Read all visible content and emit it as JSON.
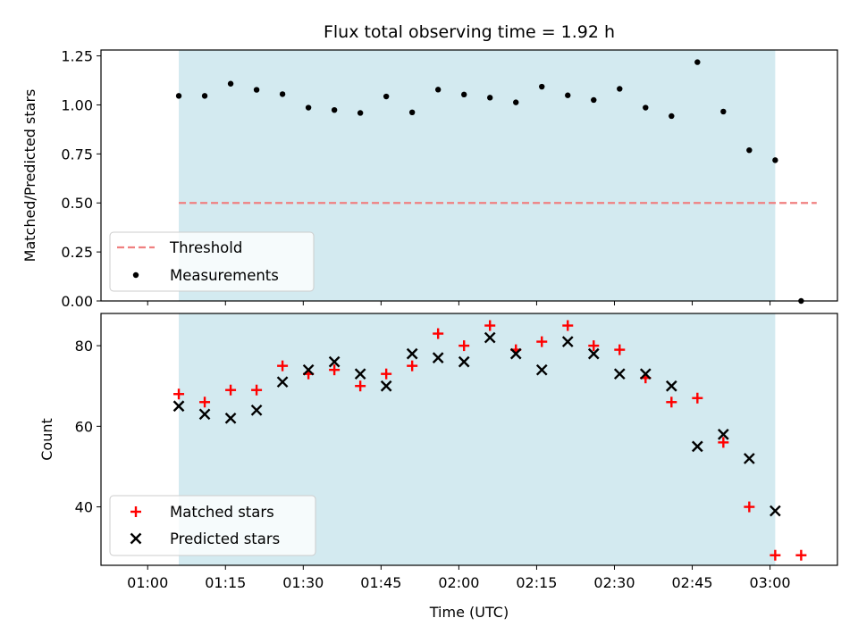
{
  "chart_data": [
    {
      "type": "scatter",
      "title": "Flux total observing time = 1.92 h",
      "xlabel": "",
      "ylabel": "Matched/Predicted stars",
      "xlim": [
        "00:51",
        "03:13"
      ],
      "ylim": [
        0,
        1.28
      ],
      "yticks": [
        "0.00",
        "0.25",
        "0.50",
        "0.75",
        "1.00",
        "1.25"
      ],
      "shaded_span": [
        "01:06",
        "03:01"
      ],
      "shade_color": "#d3eaf0",
      "legend": {
        "placement": "lower-left",
        "entries": [
          {
            "label": "Threshold",
            "marker": "dashed-line",
            "color": "#f08080"
          },
          {
            "label": "Measurements",
            "marker": "dot",
            "color": "#000000"
          }
        ]
      },
      "series": [
        {
          "name": "Threshold",
          "style": "dashed",
          "color": "#f08080",
          "x": [
            "01:06",
            "03:09"
          ],
          "values": [
            0.5,
            0.5
          ]
        },
        {
          "name": "Measurements",
          "style": "dot",
          "color": "#000000",
          "x": [
            "01:06",
            "01:11",
            "01:16",
            "01:21",
            "01:26",
            "01:31",
            "01:36",
            "01:41",
            "01:46",
            "01:51",
            "01:56",
            "02:01",
            "02:06",
            "02:11",
            "02:16",
            "02:21",
            "02:26",
            "02:31",
            "02:36",
            "02:41",
            "02:46",
            "02:51",
            "02:56",
            "03:01",
            "03:06"
          ],
          "values": [
            1.046,
            1.046,
            1.108,
            1.077,
            1.055,
            0.986,
            0.974,
            0.959,
            1.043,
            0.962,
            1.078,
            1.053,
            1.037,
            1.013,
            1.093,
            1.049,
            1.025,
            1.082,
            0.986,
            0.943,
            1.218,
            0.966,
            0.769,
            0.718,
            0.0
          ]
        }
      ]
    },
    {
      "type": "scatter",
      "title": "",
      "xlabel": "Time (UTC)",
      "ylabel": "Count",
      "xlim": [
        "00:51",
        "03:13"
      ],
      "ylim": [
        25.5,
        88
      ],
      "yticks": [
        "40",
        "60",
        "80"
      ],
      "xticks": [
        "01:00",
        "01:15",
        "01:30",
        "01:45",
        "02:00",
        "02:15",
        "02:30",
        "02:45",
        "03:00"
      ],
      "shaded_span": [
        "01:06",
        "03:01"
      ],
      "shade_color": "#d3eaf0",
      "legend": {
        "placement": "lower-left",
        "entries": [
          {
            "label": "Matched stars",
            "marker": "plus",
            "color": "#ff0000"
          },
          {
            "label": "Predicted stars",
            "marker": "x",
            "color": "#000000"
          }
        ]
      },
      "series": [
        {
          "name": "Matched stars",
          "marker": "plus",
          "color": "#ff0000",
          "x": [
            "01:06",
            "01:11",
            "01:16",
            "01:21",
            "01:26",
            "01:31",
            "01:36",
            "01:41",
            "01:46",
            "01:51",
            "01:56",
            "02:01",
            "02:06",
            "02:11",
            "02:16",
            "02:21",
            "02:26",
            "02:31",
            "02:36",
            "02:41",
            "02:46",
            "02:51",
            "02:56",
            "03:01",
            "03:06"
          ],
          "values": [
            68,
            66,
            69,
            69,
            75,
            73,
            74,
            70,
            73,
            75,
            83,
            80,
            85,
            79,
            81,
            85,
            80,
            79,
            72,
            66,
            67,
            56,
            40,
            28,
            28
          ]
        },
        {
          "name": "Predicted stars",
          "marker": "x",
          "color": "#000000",
          "x": [
            "01:06",
            "01:11",
            "01:16",
            "01:21",
            "01:26",
            "01:31",
            "01:36",
            "01:41",
            "01:46",
            "01:51",
            "01:56",
            "02:01",
            "02:06",
            "02:11",
            "02:16",
            "02:21",
            "02:26",
            "02:31",
            "02:36",
            "02:41",
            "02:46",
            "02:51",
            "02:56",
            "03:01"
          ],
          "values": [
            65,
            63,
            62,
            64,
            71,
            74,
            76,
            73,
            70,
            78,
            77,
            76,
            82,
            78,
            74,
            81,
            78,
            73,
            73,
            70,
            55,
            58,
            52,
            39
          ]
        }
      ]
    }
  ]
}
